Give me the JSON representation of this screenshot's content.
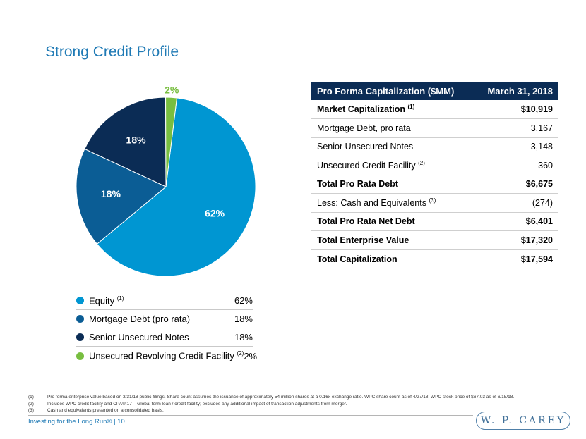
{
  "title": "Strong Credit Profile",
  "colors": {
    "title": "#1f7ab5",
    "equity": "#0096d2",
    "mortgage": "#0b5d95",
    "senior": "#0b2c55",
    "credit_facility": "#78be40",
    "table_header": "#0b2c55"
  },
  "chart_data": {
    "type": "pie",
    "slices": [
      {
        "name": "Equity",
        "value": 62,
        "label": "62%",
        "color": "#0096d2",
        "label_color": "#ffffff"
      },
      {
        "name": "Mortgage Debt (pro rata)",
        "value": 18,
        "label": "18%",
        "color": "#0b5d95",
        "label_color": "#ffffff"
      },
      {
        "name": "Senior Unsecured Notes",
        "value": 18,
        "label": "18%",
        "color": "#0b2c55",
        "label_color": "#ffffff"
      },
      {
        "name": "Unsecured Revolving Credit Facility",
        "value": 2,
        "label": "2%",
        "color": "#78be40",
        "label_color": "#78be40"
      }
    ]
  },
  "legend": [
    {
      "label": "Equity",
      "sup": "(1)",
      "value": "62%",
      "color": "#0096d2"
    },
    {
      "label": "Mortgage Debt (pro rata)",
      "sup": "",
      "value": "18%",
      "color": "#0b5d95"
    },
    {
      "label": "Senior Unsecured Notes",
      "sup": "",
      "value": "18%",
      "color": "#0b2c55"
    },
    {
      "label": "Unsecured Revolving Credit Facility",
      "sup": "(2)",
      "value": "2%",
      "color": "#78be40"
    }
  ],
  "table": {
    "header": {
      "col1": "Pro Forma Capitalization ($MM)",
      "col2": "March 31, 2018"
    },
    "rows": [
      {
        "label": "Market Capitalization",
        "sup": "(1)",
        "value": "$10,919"
      },
      {
        "label": "Mortgage Debt, pro rata",
        "sup": "",
        "value": "3,167"
      },
      {
        "label": "Senior Unsecured Notes",
        "sup": "",
        "value": "3,148"
      },
      {
        "label": "Unsecured Credit Facility",
        "sup": "(2)",
        "value": "360"
      },
      {
        "label": "Total Pro Rata Debt",
        "sup": "",
        "value": "$6,675"
      },
      {
        "label": "Less: Cash and Equivalents",
        "sup": "(3)",
        "value": "(274)"
      },
      {
        "label": "Total Pro Rata Net Debt",
        "sup": "",
        "value": "$6,401"
      },
      {
        "label": "Total Enterprise Value",
        "sup": "",
        "value": "$17,320"
      },
      {
        "label": "Total Capitalization",
        "sup": "",
        "value": "$17,594"
      }
    ]
  },
  "footnotes": [
    {
      "num": "(1)",
      "text": "Pro forma enterprise value  based on 3/31/18 public filings. Share count assumes the issuance of approximately 54 million shares at a 0.16x exchange ratio. WPC share count as of 4/27/18. WPC stock price of $67.03 as of 6/15/18."
    },
    {
      "num": "(2)",
      "text": "Includes WPC credit facility and CPA®:17 – Global term loan / credit facility; excludes any additional impact of transaction adjustments from merger."
    },
    {
      "num": "(3)",
      "text": "Cash and equivalents presented on a consolidated basis."
    }
  ],
  "tagline": "Investing for the Long Run® | 10",
  "logo_text": "W. P. CAREY"
}
